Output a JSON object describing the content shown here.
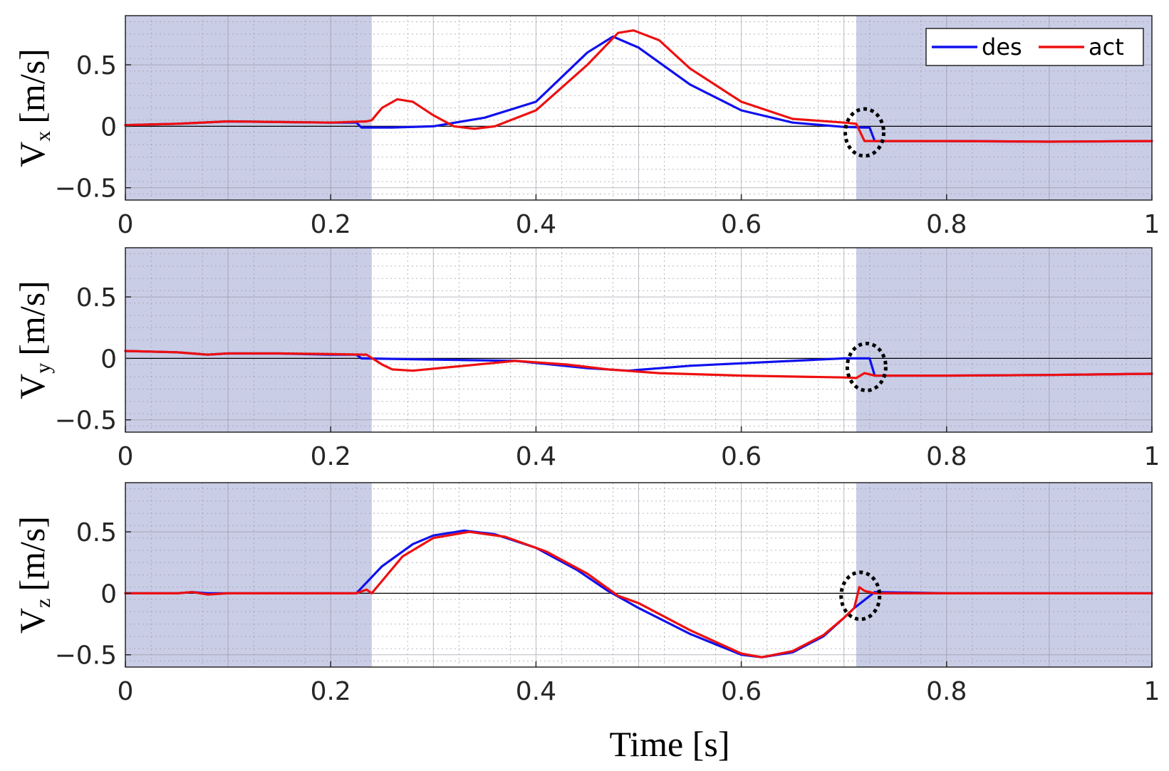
{
  "chart_data": {
    "type": "line",
    "figure_title": "",
    "xlabel": "Time [s]",
    "xlim": [
      0,
      1
    ],
    "x_ticks": [
      "0",
      "0.2",
      "0.4",
      "0.6",
      "0.8",
      "1"
    ],
    "y_ticks": [
      "-0.5",
      "0",
      "0.5"
    ],
    "ylim": [
      -0.6,
      0.9
    ],
    "shaded_intervals": [
      [
        0,
        0.24
      ],
      [
        0.712,
        1.0
      ]
    ],
    "legend": {
      "placement": "top-right",
      "entries": [
        "des",
        "act"
      ]
    },
    "colors": {
      "des": "#1010ee",
      "act": "#ee1010",
      "shade": "#c9cde6",
      "zero_line": "#000000"
    },
    "panels": [
      {
        "ylabel_main": "V",
        "ylabel_sub": "x",
        "ylabel_unit": "[m/s]",
        "marker_time": 0.72,
        "marker_value": -0.05,
        "series": [
          {
            "name": "des",
            "points": [
              [
                0,
                0.01
              ],
              [
                0.05,
                0.02
              ],
              [
                0.1,
                0.04
              ],
              [
                0.15,
                0.035
              ],
              [
                0.2,
                0.03
              ],
              [
                0.225,
                0.03
              ],
              [
                0.23,
                -0.01
              ],
              [
                0.26,
                -0.01
              ],
              [
                0.3,
                0.0
              ],
              [
                0.35,
                0.07
              ],
              [
                0.4,
                0.2
              ],
              [
                0.45,
                0.6
              ],
              [
                0.475,
                0.73
              ],
              [
                0.5,
                0.64
              ],
              [
                0.55,
                0.34
              ],
              [
                0.6,
                0.13
              ],
              [
                0.65,
                0.03
              ],
              [
                0.7,
                -0.005
              ],
              [
                0.72,
                -0.01
              ],
              [
                0.725,
                -0.01
              ],
              [
                0.73,
                -0.12
              ],
              [
                0.8,
                -0.12
              ],
              [
                0.9,
                -0.125
              ],
              [
                1.0,
                -0.12
              ]
            ]
          },
          {
            "name": "act",
            "points": [
              [
                0,
                0.01
              ],
              [
                0.05,
                0.02
              ],
              [
                0.1,
                0.04
              ],
              [
                0.15,
                0.035
              ],
              [
                0.2,
                0.03
              ],
              [
                0.235,
                0.04
              ],
              [
                0.24,
                0.05
              ],
              [
                0.25,
                0.15
              ],
              [
                0.265,
                0.22
              ],
              [
                0.28,
                0.2
              ],
              [
                0.3,
                0.09
              ],
              [
                0.32,
                0.0
              ],
              [
                0.34,
                -0.02
              ],
              [
                0.36,
                0.0
              ],
              [
                0.4,
                0.13
              ],
              [
                0.45,
                0.5
              ],
              [
                0.48,
                0.76
              ],
              [
                0.495,
                0.78
              ],
              [
                0.52,
                0.7
              ],
              [
                0.55,
                0.47
              ],
              [
                0.6,
                0.2
              ],
              [
                0.65,
                0.06
              ],
              [
                0.7,
                0.03
              ],
              [
                0.712,
                0.02
              ],
              [
                0.72,
                -0.12
              ],
              [
                0.8,
                -0.12
              ],
              [
                0.9,
                -0.125
              ],
              [
                1.0,
                -0.12
              ]
            ]
          }
        ]
      },
      {
        "ylabel_main": "V",
        "ylabel_sub": "y",
        "ylabel_unit": "[m/s]",
        "marker_time": 0.722,
        "marker_value": -0.07,
        "series": [
          {
            "name": "des",
            "points": [
              [
                0,
                0.06
              ],
              [
                0.05,
                0.05
              ],
              [
                0.065,
                0.04
              ],
              [
                0.08,
                0.03
              ],
              [
                0.1,
                0.04
              ],
              [
                0.15,
                0.04
              ],
              [
                0.2,
                0.03
              ],
              [
                0.225,
                0.03
              ],
              [
                0.23,
                0.0
              ],
              [
                0.3,
                -0.01
              ],
              [
                0.38,
                -0.02
              ],
              [
                0.45,
                -0.08
              ],
              [
                0.49,
                -0.1
              ],
              [
                0.55,
                -0.06
              ],
              [
                0.6,
                -0.04
              ],
              [
                0.65,
                -0.02
              ],
              [
                0.7,
                0.0
              ],
              [
                0.725,
                0.0
              ],
              [
                0.73,
                -0.14
              ],
              [
                0.8,
                -0.14
              ],
              [
                0.9,
                -0.135
              ],
              [
                1.0,
                -0.125
              ]
            ]
          },
          {
            "name": "act",
            "points": [
              [
                0,
                0.06
              ],
              [
                0.05,
                0.05
              ],
              [
                0.065,
                0.04
              ],
              [
                0.08,
                0.03
              ],
              [
                0.1,
                0.04
              ],
              [
                0.15,
                0.04
              ],
              [
                0.2,
                0.035
              ],
              [
                0.235,
                0.03
              ],
              [
                0.25,
                -0.05
              ],
              [
                0.26,
                -0.09
              ],
              [
                0.28,
                -0.1
              ],
              [
                0.33,
                -0.06
              ],
              [
                0.38,
                -0.02
              ],
              [
                0.43,
                -0.05
              ],
              [
                0.47,
                -0.09
              ],
              [
                0.52,
                -0.12
              ],
              [
                0.6,
                -0.14
              ],
              [
                0.7,
                -0.155
              ],
              [
                0.712,
                -0.16
              ],
              [
                0.72,
                -0.12
              ],
              [
                0.73,
                -0.14
              ],
              [
                0.8,
                -0.14
              ],
              [
                0.9,
                -0.135
              ],
              [
                1.0,
                -0.125
              ]
            ]
          }
        ]
      },
      {
        "ylabel_main": "V",
        "ylabel_sub": "z",
        "ylabel_unit": "[m/s]",
        "marker_time": 0.716,
        "marker_value": -0.02,
        "series": [
          {
            "name": "des",
            "points": [
              [
                0,
                0.0
              ],
              [
                0.05,
                0.0
              ],
              [
                0.065,
                0.01
              ],
              [
                0.08,
                0.0
              ],
              [
                0.1,
                0.0
              ],
              [
                0.15,
                0.0
              ],
              [
                0.2,
                0.0
              ],
              [
                0.225,
                0.0
              ],
              [
                0.25,
                0.22
              ],
              [
                0.28,
                0.4
              ],
              [
                0.3,
                0.47
              ],
              [
                0.33,
                0.51
              ],
              [
                0.36,
                0.48
              ],
              [
                0.4,
                0.37
              ],
              [
                0.44,
                0.19
              ],
              [
                0.47,
                0.02
              ],
              [
                0.5,
                -0.12
              ],
              [
                0.55,
                -0.33
              ],
              [
                0.6,
                -0.5
              ],
              [
                0.62,
                -0.52
              ],
              [
                0.65,
                -0.48
              ],
              [
                0.68,
                -0.35
              ],
              [
                0.7,
                -0.2
              ],
              [
                0.71,
                -0.12
              ],
              [
                0.73,
                0.01
              ],
              [
                0.8,
                0.0
              ],
              [
                1.0,
                0.0
              ]
            ]
          },
          {
            "name": "act",
            "points": [
              [
                0,
                0.0
              ],
              [
                0.05,
                0.0
              ],
              [
                0.065,
                0.01
              ],
              [
                0.08,
                -0.01
              ],
              [
                0.1,
                0.0
              ],
              [
                0.15,
                0.0
              ],
              [
                0.2,
                0.0
              ],
              [
                0.225,
                0.0
              ],
              [
                0.235,
                0.03
              ],
              [
                0.24,
                0.0
              ],
              [
                0.27,
                0.3
              ],
              [
                0.3,
                0.45
              ],
              [
                0.335,
                0.5
              ],
              [
                0.37,
                0.46
              ],
              [
                0.41,
                0.34
              ],
              [
                0.45,
                0.16
              ],
              [
                0.48,
                -0.02
              ],
              [
                0.5,
                -0.08
              ],
              [
                0.55,
                -0.3
              ],
              [
                0.6,
                -0.49
              ],
              [
                0.62,
                -0.52
              ],
              [
                0.65,
                -0.47
              ],
              [
                0.68,
                -0.34
              ],
              [
                0.7,
                -0.2
              ],
              [
                0.71,
                -0.12
              ],
              [
                0.715,
                0.05
              ],
              [
                0.72,
                0.02
              ],
              [
                0.73,
                0.0
              ],
              [
                0.8,
                0.0
              ],
              [
                1.0,
                0.0
              ]
            ]
          }
        ]
      }
    ]
  }
}
